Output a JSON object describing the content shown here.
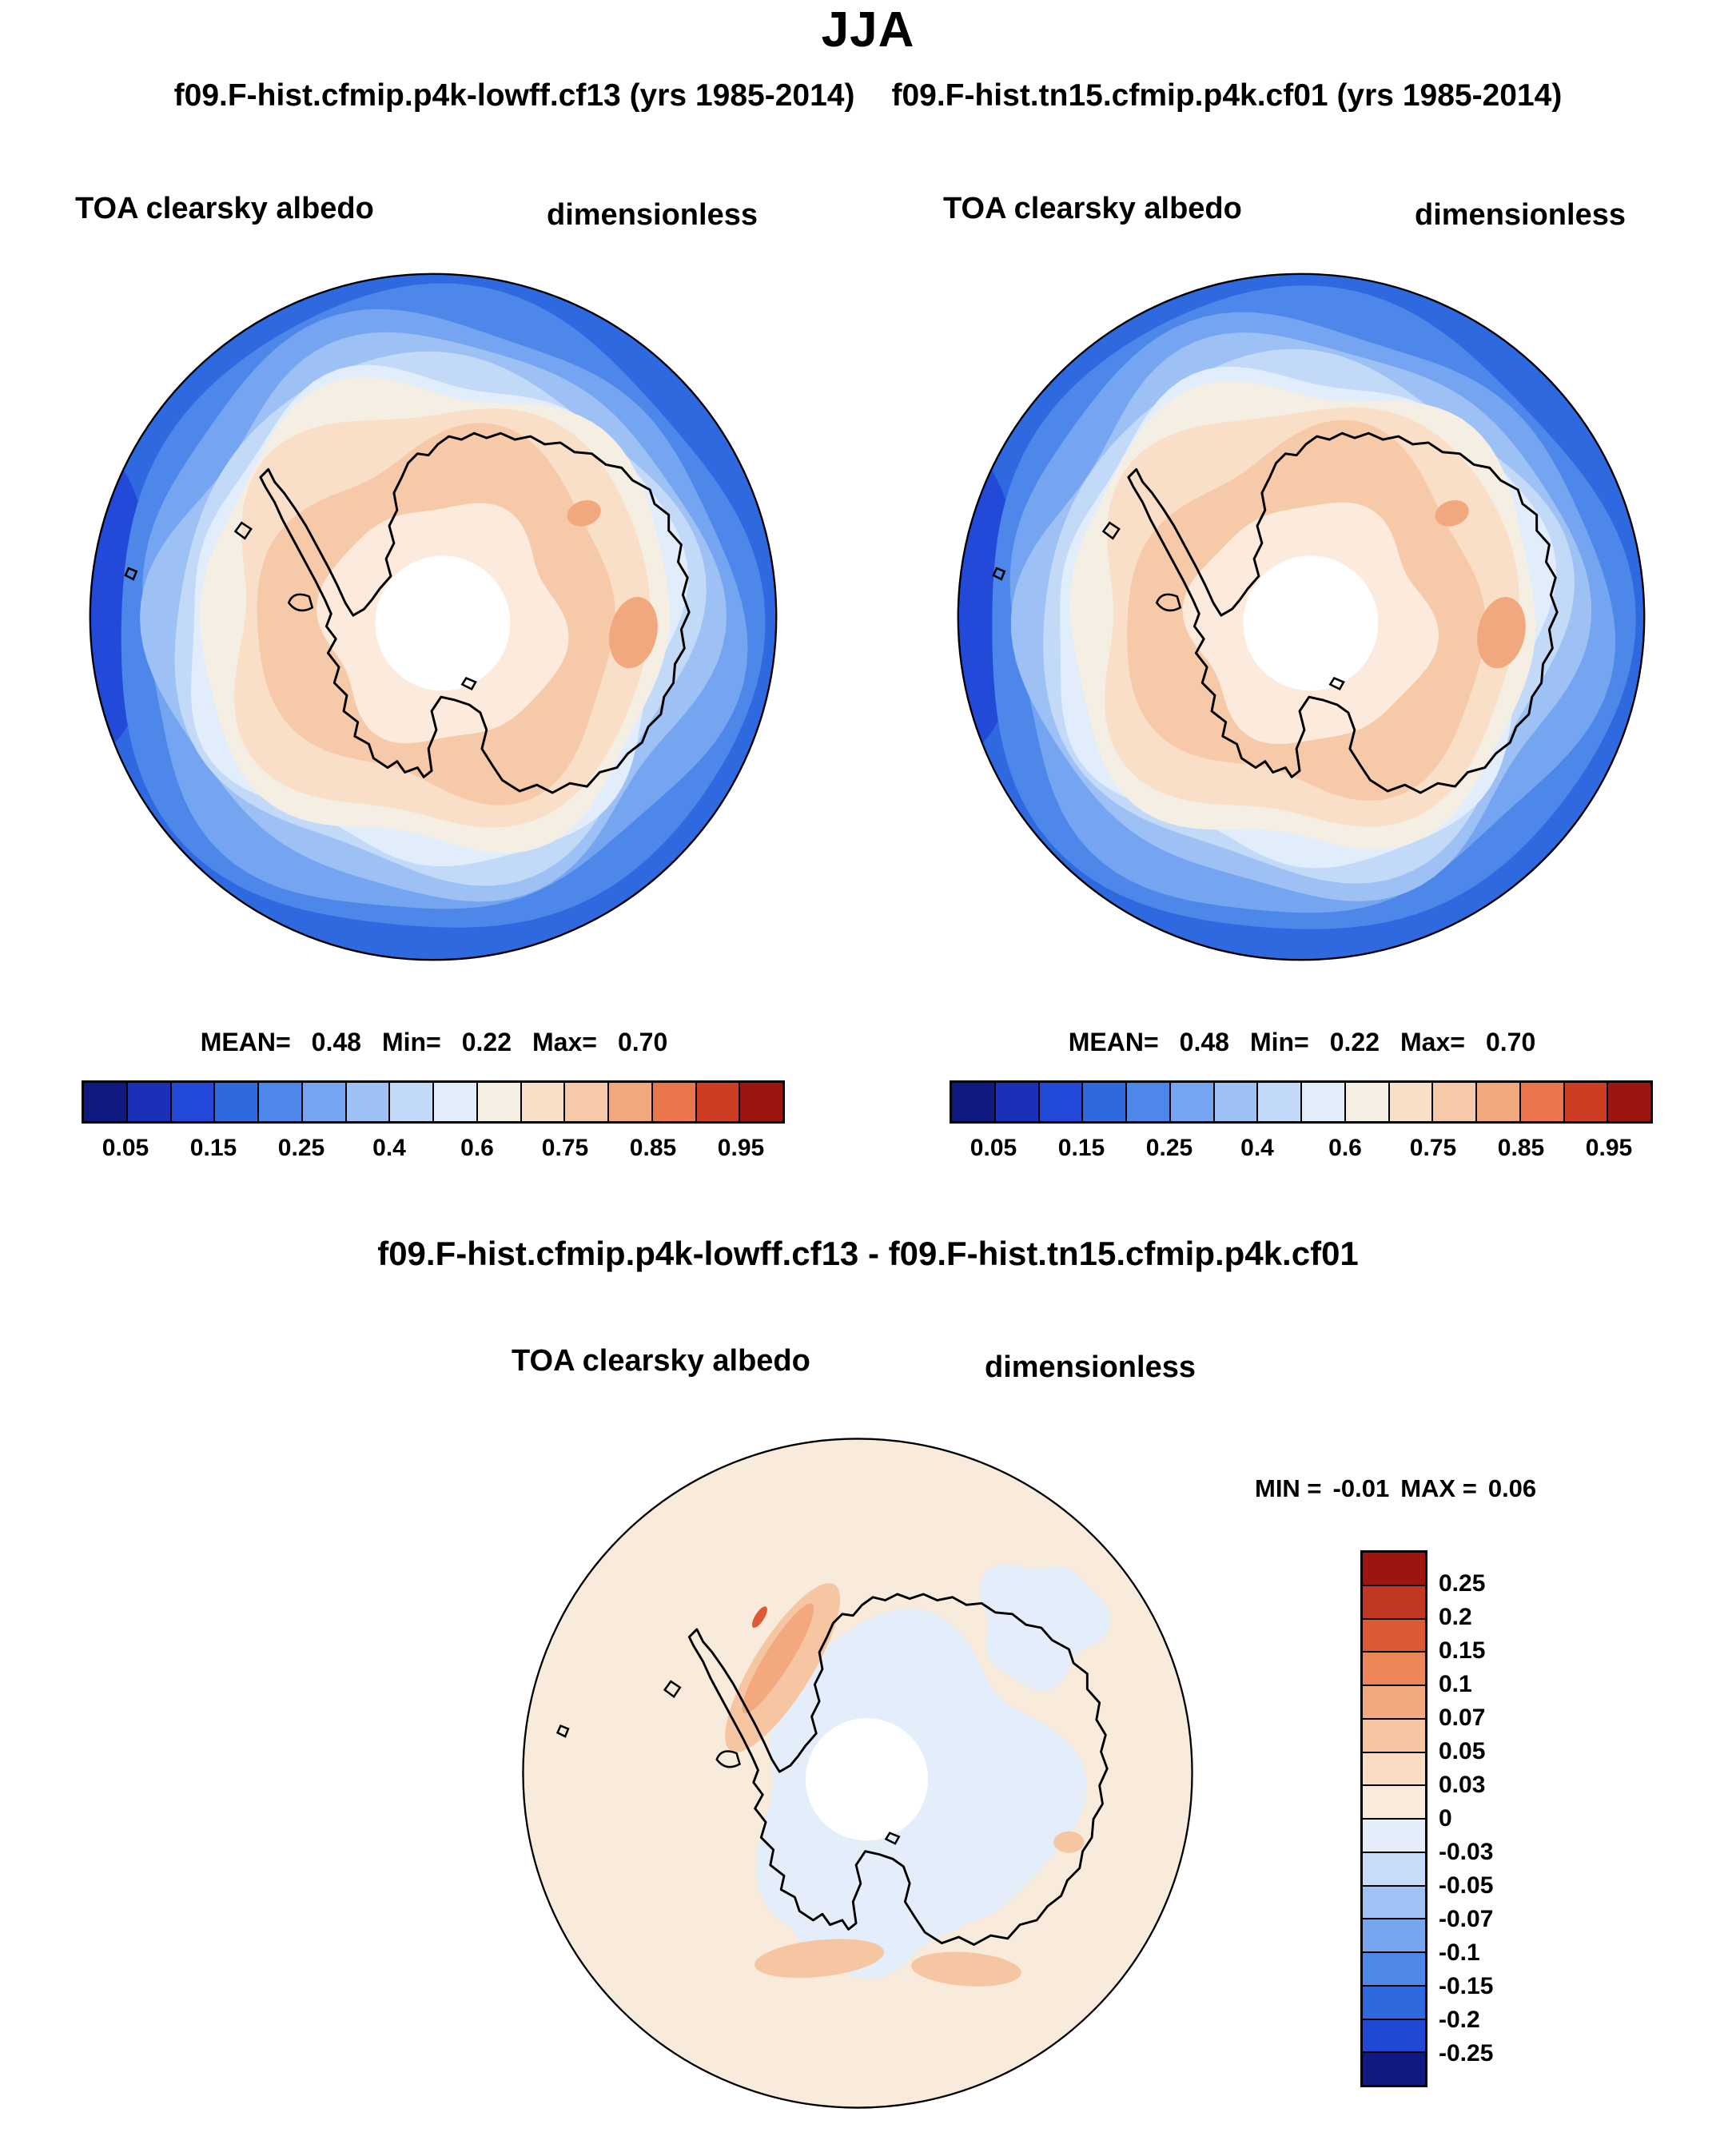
{
  "header": {
    "title": "JJA",
    "run_left": "f09.F-hist.cfmip.p4k-lowff.cf13 (yrs 1985-2014)",
    "run_right": "f09.F-hist.tn15.cfmip.p4k.cf01 (yrs 1985-2014)"
  },
  "panels": [
    {
      "var_label": "TOA clearsky albedo",
      "units_label": "dimensionless",
      "stats": {
        "mean_label": "MEAN=",
        "mean": "0.48",
        "min_label": "Min=",
        "min": "0.22",
        "max_label": "Max=",
        "max": "0.70"
      }
    },
    {
      "var_label": "TOA clearsky albedo",
      "units_label": "dimensionless",
      "stats": {
        "mean_label": "MEAN=",
        "mean": "0.48",
        "min_label": "Min=",
        "min": "0.22",
        "max_label": "Max=",
        "max": "0.70"
      }
    }
  ],
  "diff": {
    "title": "f09.F-hist.cfmip.p4k-lowff.cf13 - f09.F-hist.tn15.cfmip.p4k.cf01",
    "var_label": "TOA clearsky albedo",
    "units_label": "dimensionless",
    "stats": {
      "min_label": "MIN =",
      "min": "-0.01",
      "max_label": "MAX =",
      "max": "0.06"
    }
  },
  "chart_data": [
    {
      "id": "albedo_cf13",
      "type": "heatmap",
      "subtype": "filled-contour-polar-map",
      "projection": "south-polar-stereographic",
      "region": "Antarctica / Southern Ocean",
      "season": "JJA",
      "title": "f09.F-hist.cfmip.p4k-lowff.cf13 (yrs 1985-2014)",
      "variable": "TOA clearsky albedo",
      "units": "dimensionless",
      "stats": {
        "mean": 0.48,
        "min": 0.22,
        "max": 0.7
      },
      "contour_levels": [
        0.05,
        0.1,
        0.15,
        0.2,
        0.25,
        0.3,
        0.4,
        0.5,
        0.6,
        0.7,
        0.75,
        0.8,
        0.85,
        0.9,
        0.95
      ],
      "colorbar_tick_labels": [
        "0.05",
        "0.15",
        "0.25",
        "0.4",
        "0.6",
        "0.75",
        "0.85",
        "0.95"
      ],
      "palette": [
        "#10197f",
        "#1b30b9",
        "#2349d8",
        "#2f69e0",
        "#4d87e9",
        "#75a5f0",
        "#9dc1f5",
        "#c3d9f8",
        "#e2edfb",
        "#f5efe3",
        "#f9dfc8",
        "#f6c9a8",
        "#f2a87e",
        "#e9774b",
        "#cc3d22",
        "#9c1510"
      ],
      "pattern": "High albedo (~0.6-0.7, peach) over the Antarctic ice sheet and surrounding winter sea ice; decreases outward through ~0.4 (cream) to ~0.05-0.25 (blues) over the open Southern Ocean; white disk at the pole = missing data (polar night); black Antarctic coastline overlaid."
    },
    {
      "id": "albedo_cf01",
      "type": "heatmap",
      "subtype": "filled-contour-polar-map",
      "projection": "south-polar-stereographic",
      "region": "Antarctica / Southern Ocean",
      "season": "JJA",
      "title": "f09.F-hist.tn15.cfmip.p4k.cf01 (yrs 1985-2014)",
      "variable": "TOA clearsky albedo",
      "units": "dimensionless",
      "stats": {
        "mean": 0.48,
        "min": 0.22,
        "max": 0.7
      },
      "contour_levels": [
        0.05,
        0.1,
        0.15,
        0.2,
        0.25,
        0.3,
        0.4,
        0.5,
        0.6,
        0.7,
        0.75,
        0.8,
        0.85,
        0.9,
        0.95
      ],
      "colorbar_tick_labels": [
        "0.05",
        "0.15",
        "0.25",
        "0.4",
        "0.6",
        "0.75",
        "0.85",
        "0.95"
      ],
      "palette": [
        "#10197f",
        "#1b30b9",
        "#2349d8",
        "#2f69e0",
        "#4d87e9",
        "#75a5f0",
        "#9dc1f5",
        "#c3d9f8",
        "#e2edfb",
        "#f5efe3",
        "#f9dfc8",
        "#f6c9a8",
        "#f2a87e",
        "#e9774b",
        "#cc3d22",
        "#9c1510"
      ],
      "pattern": "Nearly identical spatial pattern to the first panel: high albedo peach over ice, blue ring over open ocean, white polar data hole."
    },
    {
      "id": "difference",
      "type": "heatmap",
      "subtype": "filled-contour-polar-map-difference",
      "projection": "south-polar-stereographic",
      "region": "Antarctica / Southern Ocean",
      "season": "JJA",
      "title": "f09.F-hist.cfmip.p4k-lowff.cf13 - f09.F-hist.tn15.cfmip.p4k.cf01",
      "variable": "TOA clearsky albedo",
      "units": "dimensionless",
      "stats": {
        "min": -0.01,
        "max": 0.06
      },
      "contour_levels": [
        -0.25,
        -0.2,
        -0.15,
        -0.1,
        -0.07,
        -0.05,
        -0.03,
        0,
        0.03,
        0.05,
        0.07,
        0.1,
        0.15,
        0.2,
        0.25
      ],
      "colorbar_tick_labels_top_to_bottom": [
        "0.25",
        "0.2",
        "0.15",
        "0.1",
        "0.07",
        "0.05",
        "0.03",
        "0",
        "-0.03",
        "-0.05",
        "-0.07",
        "-0.1",
        "-0.15",
        "-0.2",
        "-0.25"
      ],
      "palette_low_to_high": [
        "#111a83",
        "#2147d5",
        "#2f68df",
        "#4e88e8",
        "#77a6ef",
        "#9fc2f4",
        "#c6dcf8",
        "#e3eefa",
        "#f8ebdc",
        "#f9dcc4",
        "#f6c5a2",
        "#f3a87e",
        "#ec8557",
        "#dd5a35",
        "#c23723",
        "#9c1510"
      ],
      "pattern": "Differences are small: mostly 0 to +0.03 (pale pink) over the ocean/sea-ice ring and -0.03 to 0 (pale blue) over the continental interior and around the pole; +0.03 to +0.07 (orange) elongated streak along the Antarctic Peninsula with a small stronger core, and faint orange patches near the bottom coast."
    }
  ]
}
